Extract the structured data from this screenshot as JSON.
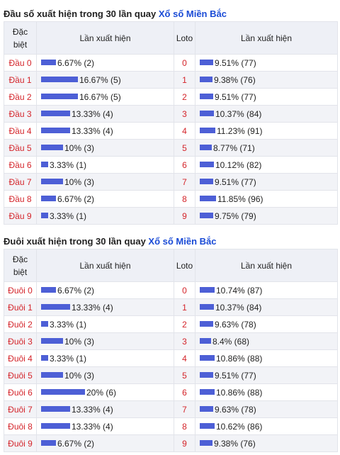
{
  "section1": {
    "title_prefix": "Đầu số xuất hiện trong 30 lần quay ",
    "title_link": "Xổ số Miền Bắc",
    "headers": {
      "dac_biet_1": "Đặc",
      "dac_biet_2": "biệt",
      "lan_xuat_hien": "Lần xuất hiện",
      "loto": "Loto",
      "lan_xuat_hien_2": "Lần xuất hiện"
    },
    "rows": [
      {
        "label": "Đầu 0",
        "pct": 6.67,
        "text": "6.67% (2)",
        "loto": "0",
        "loto_pct": 9.51,
        "loto_text": "9.51% (77)"
      },
      {
        "label": "Đầu 1",
        "pct": 16.67,
        "text": "16.67% (5)",
        "loto": "1",
        "loto_pct": 9.38,
        "loto_text": "9.38% (76)"
      },
      {
        "label": "Đầu 2",
        "pct": 16.67,
        "text": "16.67% (5)",
        "loto": "2",
        "loto_pct": 9.51,
        "loto_text": "9.51% (77)"
      },
      {
        "label": "Đầu 3",
        "pct": 13.33,
        "text": "13.33% (4)",
        "loto": "3",
        "loto_pct": 10.37,
        "loto_text": "10.37% (84)"
      },
      {
        "label": "Đầu 4",
        "pct": 13.33,
        "text": "13.33% (4)",
        "loto": "4",
        "loto_pct": 11.23,
        "loto_text": "11.23% (91)"
      },
      {
        "label": "Đầu 5",
        "pct": 10,
        "text": "10% (3)",
        "loto": "5",
        "loto_pct": 8.77,
        "loto_text": "8.77% (71)"
      },
      {
        "label": "Đầu 6",
        "pct": 3.33,
        "text": "3.33% (1)",
        "loto": "6",
        "loto_pct": 10.12,
        "loto_text": "10.12% (82)"
      },
      {
        "label": "Đầu 7",
        "pct": 10,
        "text": "10% (3)",
        "loto": "7",
        "loto_pct": 9.51,
        "loto_text": "9.51% (77)"
      },
      {
        "label": "Đầu 8",
        "pct": 6.67,
        "text": "6.67% (2)",
        "loto": "8",
        "loto_pct": 11.85,
        "loto_text": "11.85% (96)"
      },
      {
        "label": "Đầu 9",
        "pct": 3.33,
        "text": "3.33% (1)",
        "loto": "9",
        "loto_pct": 9.75,
        "loto_text": "9.75% (79)"
      }
    ]
  },
  "section2": {
    "title_prefix": "Đuôi xuất hiện trong 30 lần quay ",
    "title_link": "Xổ số Miền Bắc",
    "headers": {
      "dac_biet_1": "Đặc",
      "dac_biet_2": "biệt",
      "lan_xuat_hien": "Lần xuất hiện",
      "loto": "Loto",
      "lan_xuat_hien_2": "Lần xuất hiện"
    },
    "rows": [
      {
        "label": "Đuôi 0",
        "pct": 6.67,
        "text": "6.67% (2)",
        "loto": "0",
        "loto_pct": 10.74,
        "loto_text": "10.74% (87)"
      },
      {
        "label": "Đuôi 1",
        "pct": 13.33,
        "text": "13.33% (4)",
        "loto": "1",
        "loto_pct": 10.37,
        "loto_text": "10.37% (84)"
      },
      {
        "label": "Đuôi 2",
        "pct": 3.33,
        "text": "3.33% (1)",
        "loto": "2",
        "loto_pct": 9.63,
        "loto_text": "9.63% (78)"
      },
      {
        "label": "Đuôi 3",
        "pct": 10,
        "text": "10% (3)",
        "loto": "3",
        "loto_pct": 8.4,
        "loto_text": "8.4% (68)"
      },
      {
        "label": "Đuôi 4",
        "pct": 3.33,
        "text": "3.33% (1)",
        "loto": "4",
        "loto_pct": 10.86,
        "loto_text": "10.86% (88)"
      },
      {
        "label": "Đuôi 5",
        "pct": 10,
        "text": "10% (3)",
        "loto": "5",
        "loto_pct": 9.51,
        "loto_text": "9.51% (77)"
      },
      {
        "label": "Đuôi 6",
        "pct": 20,
        "text": "20% (6)",
        "loto": "6",
        "loto_pct": 10.86,
        "loto_text": "10.86% (88)"
      },
      {
        "label": "Đuôi 7",
        "pct": 13.33,
        "text": "13.33% (4)",
        "loto": "7",
        "loto_pct": 9.63,
        "loto_text": "9.63% (78)"
      },
      {
        "label": "Đuôi 8",
        "pct": 13.33,
        "text": "13.33% (4)",
        "loto": "8",
        "loto_pct": 10.62,
        "loto_text": "10.62% (86)"
      },
      {
        "label": "Đuôi 9",
        "pct": 6.67,
        "text": "6.67% (2)",
        "loto": "9",
        "loto_pct": 9.38,
        "loto_text": "9.38% (76)"
      }
    ]
  },
  "colors": {
    "bar": "#4d5fd6",
    "label_red": "#d4242a",
    "link_blue": "#1a4bd6",
    "header_bg": "#eef0f6"
  }
}
